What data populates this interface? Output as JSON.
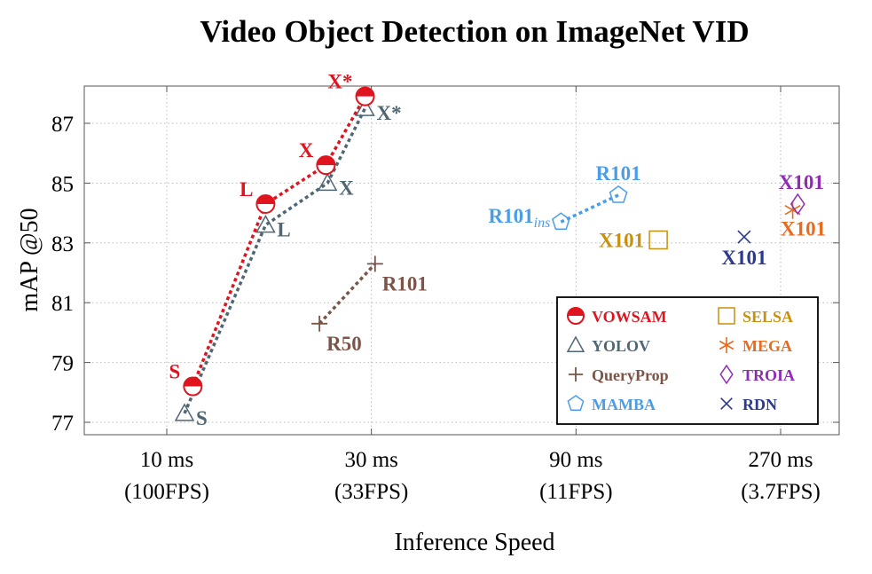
{
  "chart_data": {
    "type": "scatter",
    "title": "Video Object Detection on ImageNet VID",
    "xlabel": "Inference Speed",
    "ylabel": "mAP @50",
    "ylim": [
      77,
      88
    ],
    "yticks": [
      77,
      79,
      81,
      83,
      85,
      87
    ],
    "xscale": "log",
    "xlim_ms": [
      7.7,
      380
    ],
    "xticks": [
      {
        "value": 10,
        "label_lines": [
          "10 ms",
          "(100FPS)"
        ]
      },
      {
        "value": 30,
        "label_lines": [
          "30 ms",
          "(33FPS)"
        ]
      },
      {
        "value": 90,
        "label_lines": [
          "90 ms",
          "(11FPS)"
        ]
      },
      {
        "value": 270,
        "label_lines": [
          "270 ms",
          "(3.7FPS)"
        ]
      }
    ],
    "grid": true,
    "legend_position": "bottom-right",
    "series": [
      {
        "name": "VOWSAM",
        "marker": "half-circle",
        "color": "#e0141e",
        "connected": true,
        "points": [
          {
            "x": 11.5,
            "y": 78.2,
            "label": "S",
            "label_pos": "left"
          },
          {
            "x": 17.0,
            "y": 84.3,
            "label": "L",
            "label_pos": "left"
          },
          {
            "x": 23.5,
            "y": 85.6,
            "label": "X",
            "label_pos": "left"
          },
          {
            "x": 29.0,
            "y": 87.9,
            "label": "X*",
            "label_pos": "left"
          }
        ]
      },
      {
        "name": "YOLOV",
        "marker": "triangle",
        "color": "#4f6773",
        "connected": true,
        "points": [
          {
            "x": 11.0,
            "y": 77.3,
            "label": "S",
            "label_pos": "right"
          },
          {
            "x": 17.0,
            "y": 83.6,
            "label": "L",
            "label_pos": "right"
          },
          {
            "x": 23.7,
            "y": 85.0,
            "label": "X",
            "label_pos": "right"
          },
          {
            "x": 29.0,
            "y": 87.5,
            "label": "X*",
            "label_pos": "right"
          }
        ]
      },
      {
        "name": "QueryProp",
        "marker": "plus",
        "color": "#7a5548",
        "connected": true,
        "points": [
          {
            "x": 22.7,
            "y": 80.3,
            "label": "R50",
            "label_pos": "below-right"
          },
          {
            "x": 30.6,
            "y": 82.3,
            "label": "R101",
            "label_pos": "below-right"
          }
        ]
      },
      {
        "name": "MAMBA",
        "marker": "pentagon",
        "color": "#4a9de8",
        "connected": true,
        "points": [
          {
            "x": 83.0,
            "y": 83.7,
            "label": "R101",
            "label_sub": "ins",
            "label_pos": "left"
          },
          {
            "x": 113.0,
            "y": 84.6,
            "label": "R101",
            "label_pos": "above"
          }
        ]
      },
      {
        "name": "SELSA",
        "marker": "square",
        "color": "#c9900f",
        "connected": false,
        "points": [
          {
            "x": 140.0,
            "y": 83.1,
            "label": "X101",
            "label_pos": "left"
          }
        ]
      },
      {
        "name": "MEGA",
        "marker": "asterisk",
        "color": "#e86a1e",
        "connected": false,
        "points": [
          {
            "x": 288.0,
            "y": 84.1,
            "label": "X101",
            "label_pos": "below"
          }
        ]
      },
      {
        "name": "TROIA",
        "marker": "diamond",
        "color": "#8f2bb5",
        "connected": false,
        "points": [
          {
            "x": 296.0,
            "y": 84.3,
            "label": "X101",
            "label_pos": "above"
          }
        ]
      },
      {
        "name": "RDN",
        "marker": "cross",
        "color": "#2b3990",
        "connected": false,
        "points": [
          {
            "x": 222.0,
            "y": 83.2,
            "label": "X101",
            "label_pos": "below"
          }
        ]
      }
    ],
    "legend": [
      {
        "name": "VOWSAM",
        "marker": "half-circle",
        "color": "#e0141e"
      },
      {
        "name": "SELSA",
        "marker": "square",
        "color": "#c9900f"
      },
      {
        "name": "YOLOV",
        "marker": "triangle",
        "color": "#4f6773"
      },
      {
        "name": "MEGA",
        "marker": "asterisk",
        "color": "#e86a1e"
      },
      {
        "name": "QueryProp",
        "marker": "plus",
        "color": "#7a5548"
      },
      {
        "name": "TROIA",
        "marker": "diamond",
        "color": "#8f2bb5"
      },
      {
        "name": "MAMBA",
        "marker": "pentagon",
        "color": "#4a9de8"
      },
      {
        "name": "RDN",
        "marker": "cross",
        "color": "#2b3990"
      }
    ]
  }
}
